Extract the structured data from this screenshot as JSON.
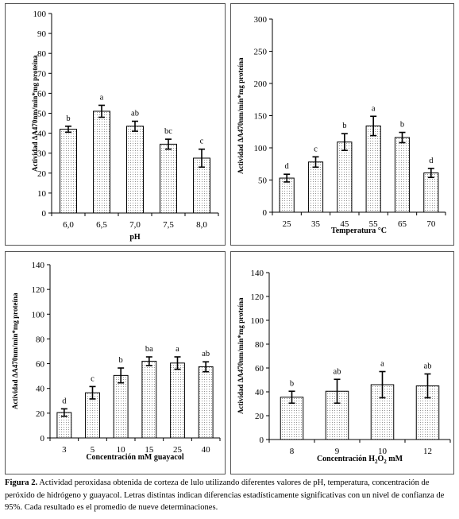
{
  "figure": {
    "caption_label": "Figura 2.",
    "caption_text": "Actividad peroxidasa obtenida de corteza de lulo utilizando diferentes valores de pH, temperatura, concentración de peróxido de hidrógeno y guayacol. Letras distintas indican diferencias estadísticamente significativas con un nivel de confianza de 95%. Cada resultado es el promedio de nueve determinaciones."
  },
  "chart_data": [
    {
      "type": "bar",
      "ylabel": "Actividad ΔA470nm/min*mg proteína",
      "xlabel": "pH",
      "categories": [
        "6,0",
        "6,5",
        "7,0",
        "7,5",
        "8,0"
      ],
      "values": [
        42,
        51,
        43.5,
        34.5,
        27.5
      ],
      "errors": [
        1.5,
        3,
        2.5,
        2.5,
        4.5
      ],
      "letters": [
        "b",
        "a",
        "ab",
        "bc",
        "c"
      ],
      "ylim": [
        0,
        100
      ],
      "yticks": [
        0,
        10,
        20,
        30,
        40,
        50,
        60,
        70,
        80,
        90,
        100
      ]
    },
    {
      "type": "bar",
      "ylabel": "Actividad ΔA470nm/min*mg proteína",
      "xlabel": "Temperatura °C",
      "categories": [
        "25",
        "35",
        "45",
        "55",
        "65",
        "70"
      ],
      "values": [
        53,
        78,
        109,
        134,
        116,
        61
      ],
      "errors": [
        6,
        8,
        13,
        15,
        8,
        7
      ],
      "letters": [
        "d",
        "c",
        "b",
        "a",
        "b",
        "d"
      ],
      "ylim": [
        0,
        300
      ],
      "yticks": [
        0,
        50,
        100,
        150,
        200,
        250,
        300
      ]
    },
    {
      "type": "bar",
      "ylabel": "Actividad ΔA470nm/min*mg proteína",
      "xlabel": "Concentración mM guayacol",
      "categories": [
        "3",
        "5",
        "10",
        "15",
        "25",
        "40"
      ],
      "values": [
        20.5,
        36.5,
        50.5,
        62,
        60.5,
        57.5
      ],
      "errors": [
        3,
        5,
        6,
        3.5,
        5,
        4
      ],
      "letters": [
        "d",
        "c",
        "b",
        "ba",
        "a",
        "ab"
      ],
      "ylim": [
        0,
        140
      ],
      "yticks": [
        0,
        20,
        40,
        60,
        80,
        100,
        120,
        140
      ]
    },
    {
      "type": "bar",
      "ylabel": "Actividad ΔA470nm/min*mg proteína",
      "xlabel_pre": "Concentración H",
      "xlabel_sub1": "2",
      "xlabel_mid": "O",
      "xlabel_sub2": "2",
      "xlabel_post": " mM",
      "categories": [
        "8",
        "9",
        "10",
        "12"
      ],
      "values": [
        35.5,
        40.5,
        46,
        45
      ],
      "errors": [
        5,
        10,
        11,
        10
      ],
      "letters": [
        "b",
        "ab",
        "a",
        "ab"
      ],
      "ylim": [
        0,
        140
      ],
      "yticks": [
        0,
        20,
        40,
        60,
        80,
        100,
        120,
        140
      ]
    }
  ]
}
